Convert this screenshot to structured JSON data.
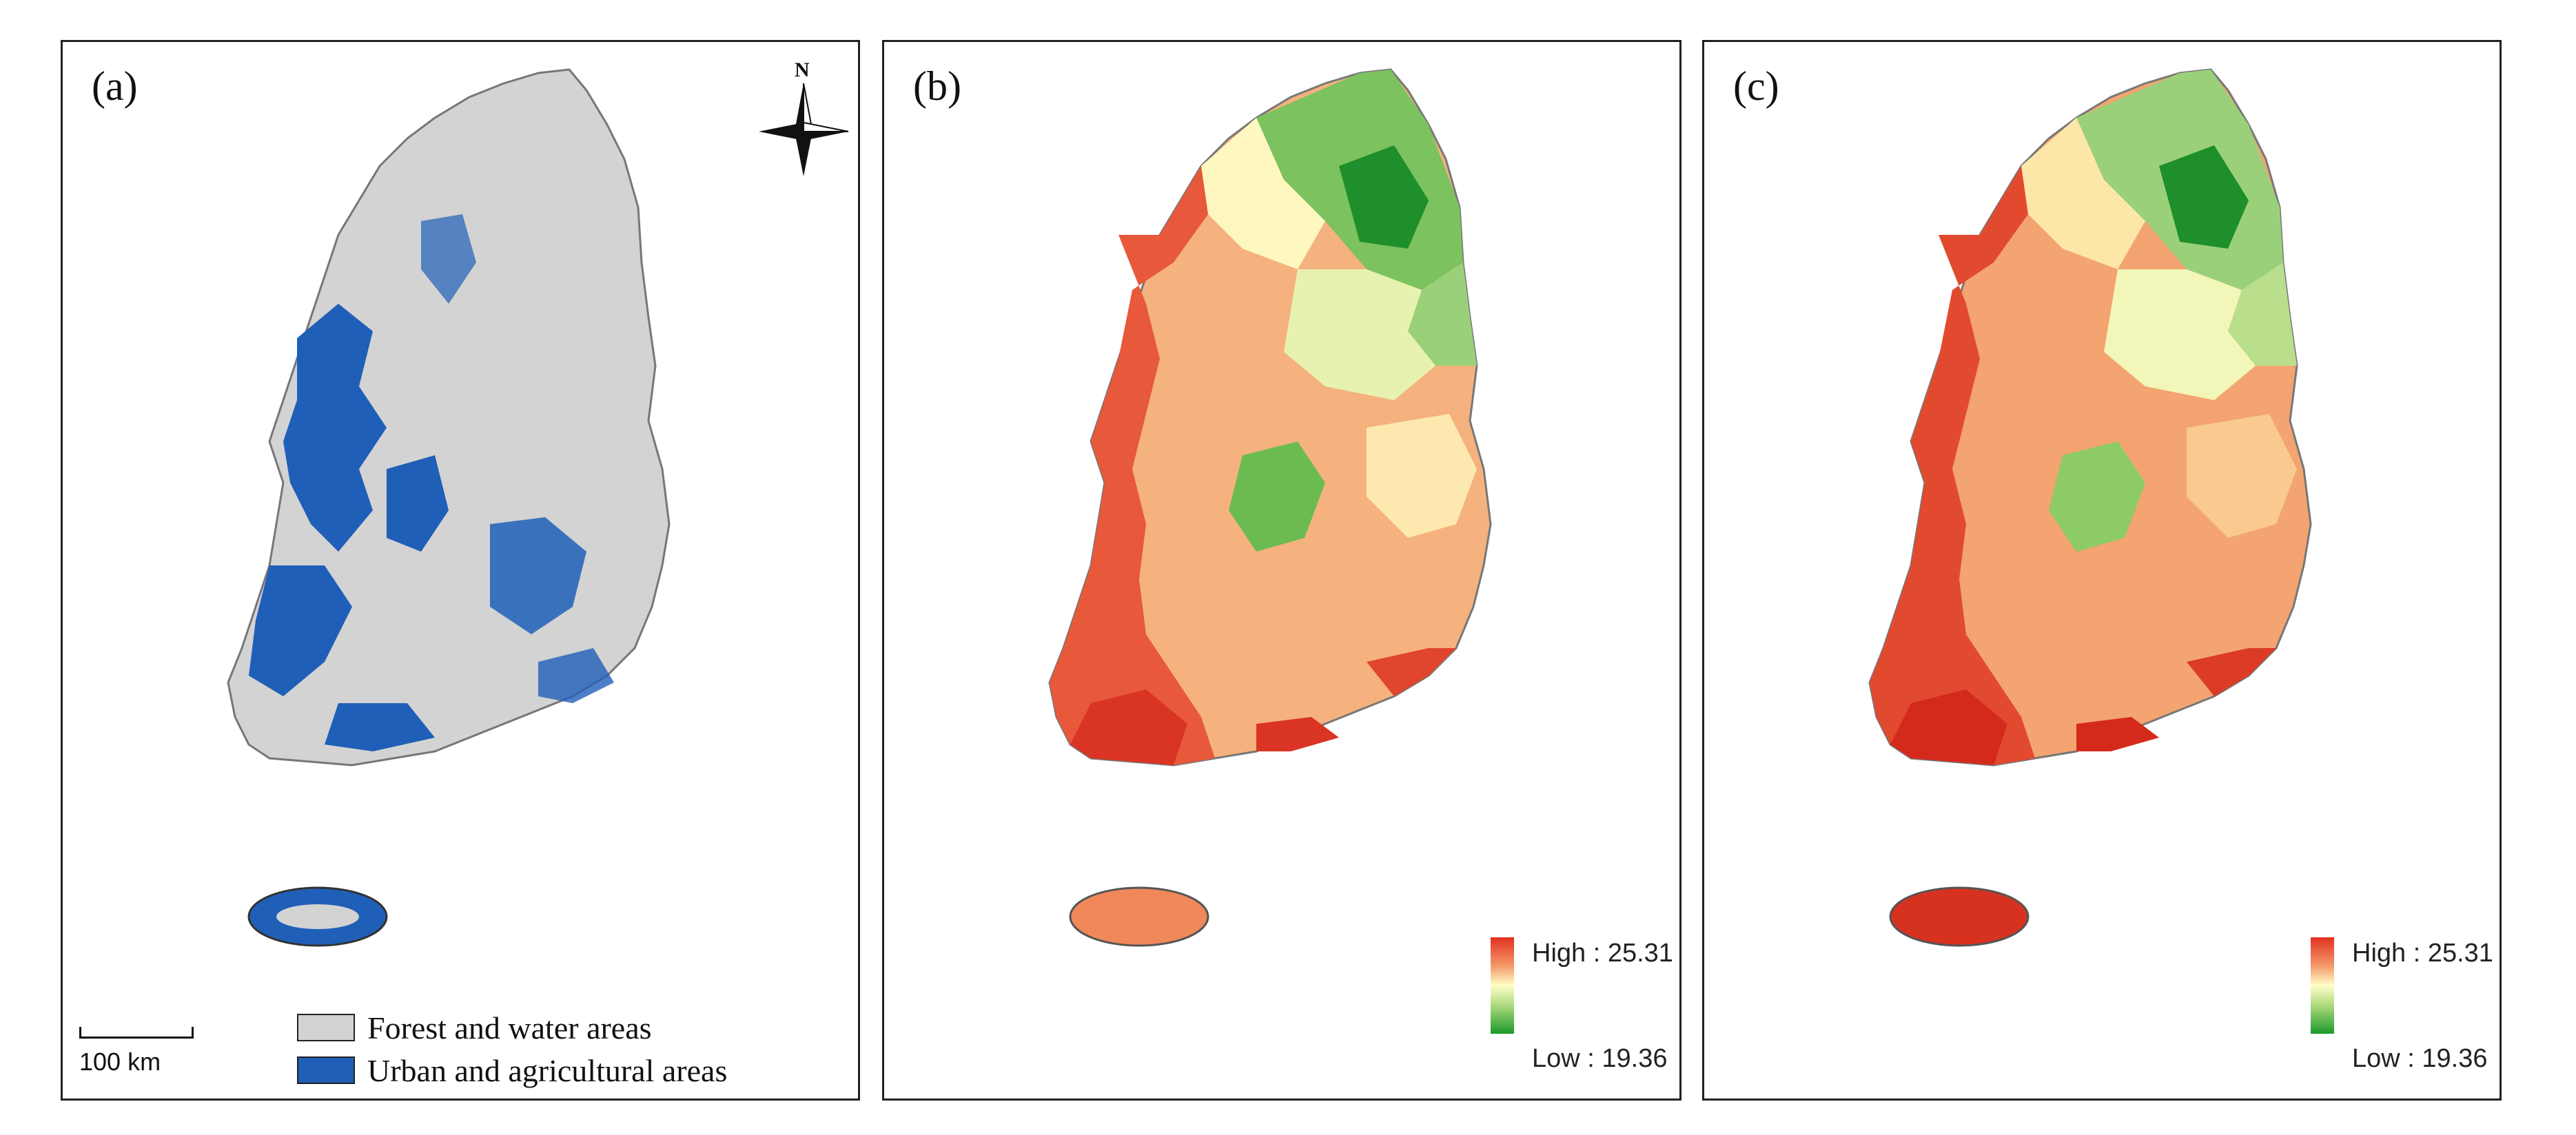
{
  "panels": {
    "a": {
      "label": "(a)"
    },
    "b": {
      "label": "(b)"
    },
    "c": {
      "label": "(c)"
    }
  },
  "compass": {
    "north_label": "N"
  },
  "scale_bar": {
    "label": "100 km"
  },
  "legend_a": {
    "items": [
      {
        "label": "Forest and water areas",
        "color": "#d3d3d3"
      },
      {
        "label": "Urban and agricultural areas",
        "color": "#1f5fb8"
      }
    ]
  },
  "legend_ramp": {
    "high_label": "High : 25.31",
    "low_label": "Low : 19.36",
    "high_color": "#e03020",
    "mid_color": "#ffffc8",
    "low_color": "#1a9a2a"
  },
  "colors": {
    "urban_blue": "#1f5fb8",
    "forest_gray": "#d3d3d3",
    "boundary": "#777777"
  }
}
